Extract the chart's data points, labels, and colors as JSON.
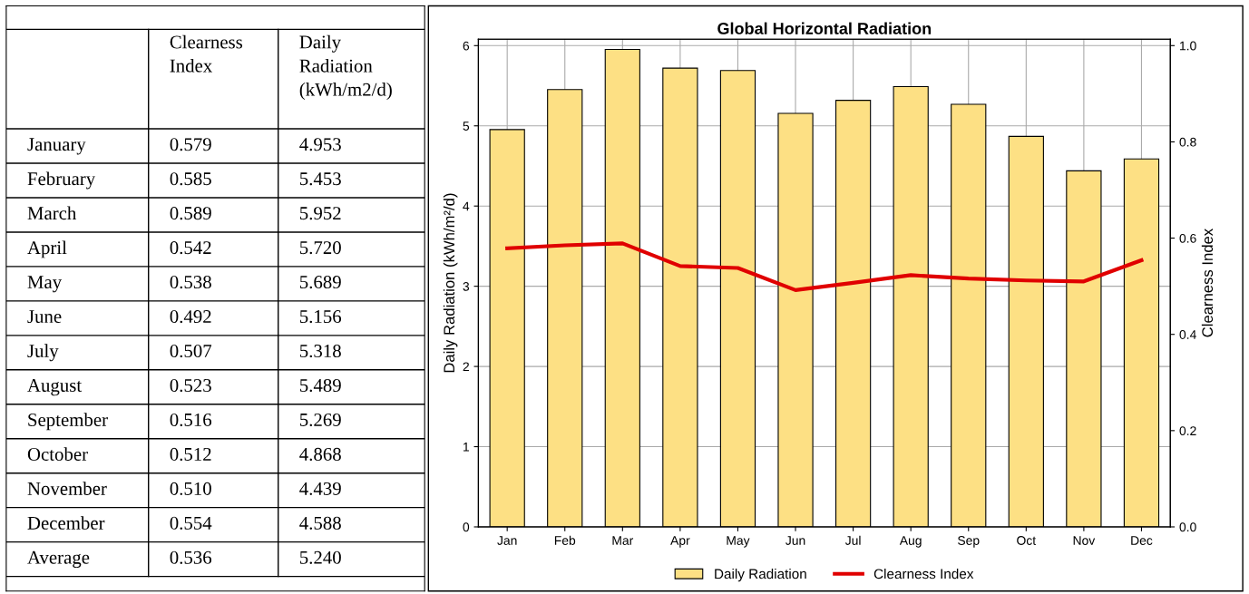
{
  "chart_data": [
    {
      "type": "other",
      "annotations": [
        "Clearness\nIndex",
        "Daily\nRadiation\n(kWh/m2/d)",
        "January",
        "0.579",
        "4.953",
        "February",
        "0.585",
        "5.453",
        "March",
        "0.589",
        "5.952",
        "April",
        "0.542",
        "5.720",
        "May",
        "0.538",
        "5.689",
        "June",
        "0.492",
        "5.156",
        "July",
        "0.507",
        "5.318",
        "August",
        "0.523",
        "5.489",
        "September",
        "0.516",
        "5.269",
        "October",
        "0.512",
        "4.868",
        "November",
        "0.510",
        "4.439",
        "December",
        "0.554",
        "4.588",
        "Average",
        "0.536",
        "5.240"
      ]
    },
    {
      "type": "bar",
      "title": "Global Horizontal Radiation",
      "ylabel": "Daily Radiation (kWh/m²/d)",
      "y2label": "Clearness Index",
      "categories": [
        "Jan",
        "Feb",
        "Mar",
        "Apr",
        "May",
        "Jun",
        "Jul",
        "Aug",
        "Sep",
        "Oct",
        "Nov",
        "Dec"
      ],
      "series": [
        {
          "name": "Daily Radiation",
          "type": "bar",
          "color": "#fde084",
          "values": [
            4.953,
            5.453,
            5.952,
            5.72,
            5.689,
            5.156,
            5.318,
            5.489,
            5.269,
            4.868,
            4.439,
            4.588
          ]
        },
        {
          "name": "Clearness Index",
          "type": "line",
          "axis": "y2",
          "color": "#e00000",
          "values": [
            0.579,
            0.585,
            0.589,
            0.542,
            0.538,
            0.492,
            0.507,
            0.523,
            0.516,
            0.512,
            0.51,
            0.554
          ]
        }
      ],
      "ylim": [
        0,
        6.08
      ],
      "yticks": [
        0,
        1,
        2,
        3,
        4,
        5,
        6
      ],
      "y2lim": [
        0,
        1.0133
      ],
      "y2ticks": [
        {
          "value": 0,
          "label": "0.0"
        },
        {
          "value": 0.2,
          "label": "0.2"
        },
        {
          "value": 0.4,
          "label": "0.4"
        },
        {
          "value": 0.6,
          "label": "0.6"
        },
        {
          "value": 0.8,
          "label": "0.8"
        },
        {
          "value": 1.0,
          "label": "1.0"
        }
      ],
      "grid": true,
      "legend": "bottom",
      "marker": "none",
      "line_style": "solid"
    }
  ]
}
